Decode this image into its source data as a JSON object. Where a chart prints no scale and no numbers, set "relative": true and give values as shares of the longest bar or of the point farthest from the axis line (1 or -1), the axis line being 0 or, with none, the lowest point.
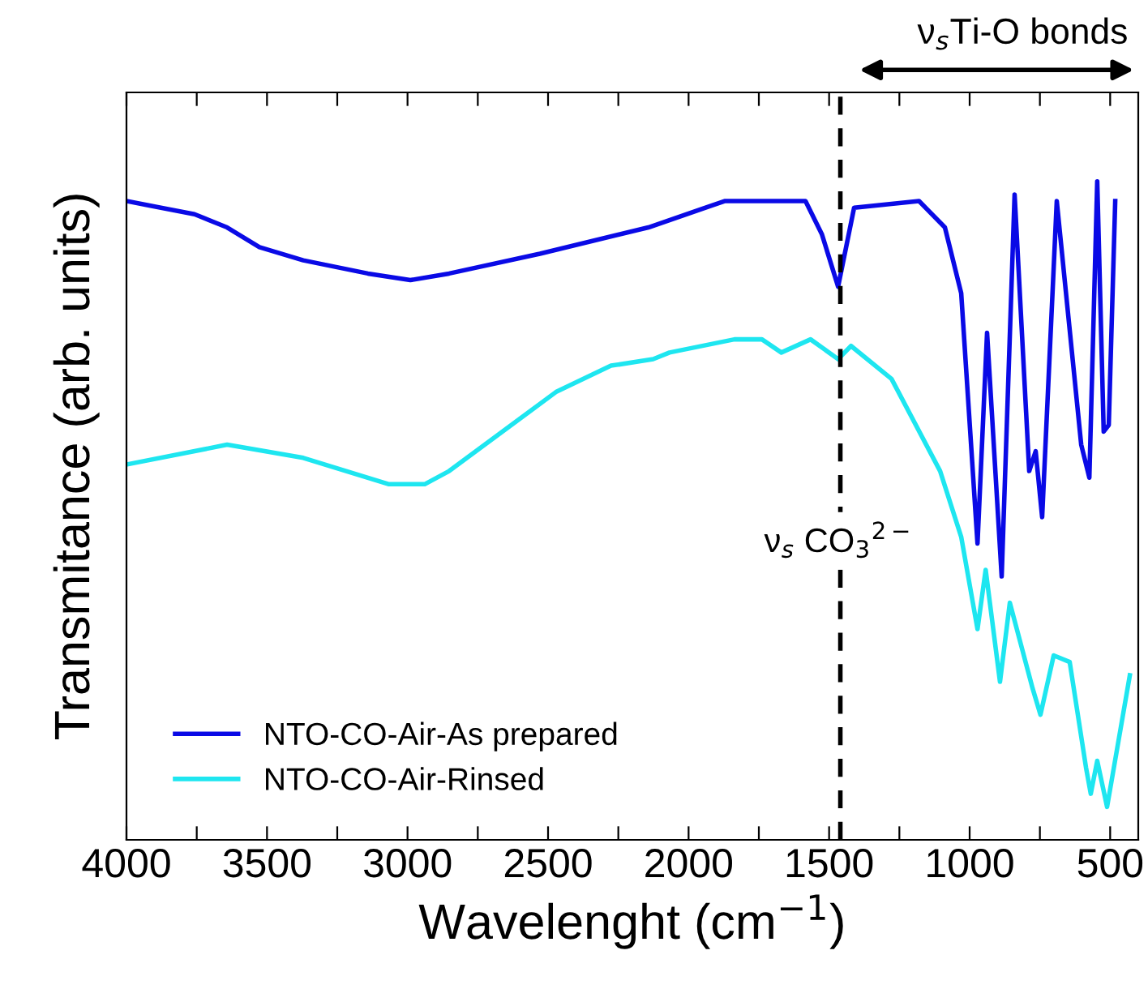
{
  "chart_data": {
    "type": "line",
    "relative": true,
    "xlabel": "Wavelenght (cm$^{−1}$)",
    "ylabel": "Transmitance (arb. units)",
    "xlim": [
      4000,
      400
    ],
    "xticks": [
      4000,
      {
        "value": 3750,
        "label": null
      },
      3500,
      {
        "value": 3250,
        "label": null
      },
      3000,
      {
        "value": 2750,
        "label": null
      },
      2500,
      {
        "value": 2250,
        "label": null
      },
      2000,
      {
        "value": 1750,
        "label": null
      },
      1500,
      {
        "value": 1250,
        "label": null
      },
      1000,
      {
        "value": 750,
        "label": null
      },
      500
    ],
    "legend": "bottom left",
    "grid": false,
    "tick_labels": "x",
    "ref_lines": [
      {
        "axis": "x",
        "value": 1460,
        "label": "ν$_{s}$ CO$_{3}$$^{2−}$",
        "color": "#000000",
        "line_style": "dashed"
      }
    ],
    "annotations": [
      "ν$_{s}$Ti-O bonds"
    ],
    "series": [
      {
        "name": "NTO-CO-Air-As prepared",
        "color": "#0a0ae6",
        "x": [
          4000,
          3758,
          3642,
          3527,
          3371,
          3141,
          2990,
          2852,
          2529,
          2143,
          1872,
          1682,
          1584,
          1526,
          1468,
          1411,
          1180,
          1088,
          1030,
          972,
          938,
          886,
          840,
          788,
          765,
          742,
          690,
          603,
          574,
          546,
          523,
          505,
          482
        ],
        "values": [
          0.97,
          0.95,
          0.93,
          0.9,
          0.88,
          0.86,
          0.85,
          0.86,
          0.89,
          0.93,
          0.97,
          0.97,
          0.97,
          0.92,
          0.84,
          0.96,
          0.97,
          0.93,
          0.83,
          0.45,
          0.77,
          0.4,
          0.98,
          0.56,
          0.59,
          0.49,
          0.97,
          0.6,
          0.55,
          1.0,
          0.62,
          0.63,
          0.97
        ]
      },
      {
        "name": "NTO-CO-Air-Rinsed",
        "color": "#1ee6f0",
        "x": [
          4000,
          3642,
          3371,
          3066,
          2939,
          2852,
          2472,
          2276,
          2126,
          2068,
          1837,
          1739,
          1670,
          1566,
          1468,
          1422,
          1278,
          1105,
          1030,
          972,
          943,
          892,
          857,
          776,
          748,
          701,
          644,
          586,
          569,
          546,
          511,
          430
        ],
        "values": [
          0.57,
          0.6,
          0.58,
          0.54,
          0.54,
          0.56,
          0.68,
          0.72,
          0.73,
          0.74,
          0.76,
          0.76,
          0.74,
          0.76,
          0.73,
          0.75,
          0.7,
          0.56,
          0.46,
          0.32,
          0.41,
          0.24,
          0.36,
          0.23,
          0.19,
          0.28,
          0.27,
          0.11,
          0.07,
          0.12,
          0.05,
          0.25
        ]
      }
    ]
  }
}
